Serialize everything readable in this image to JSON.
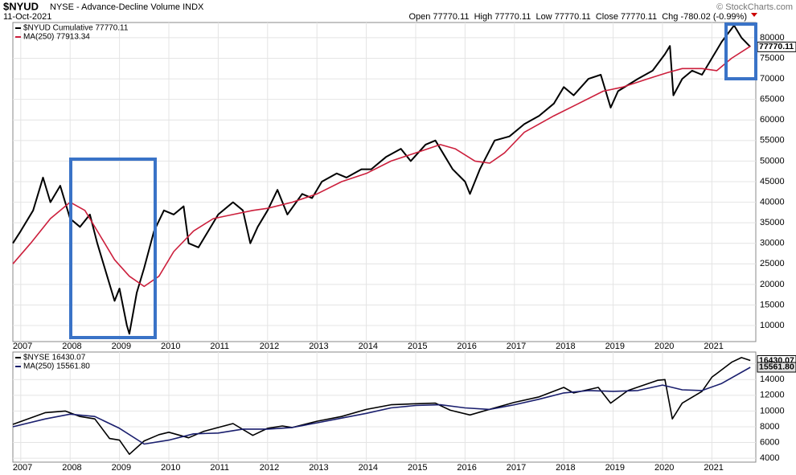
{
  "header": {
    "symbol": "$NYUD",
    "name": "NYSE - Advance-Decline Volume INDX",
    "date": "11-Oct-2021",
    "quote": "Open 77770.11  High 77770.11  Low 77770.11  Close 77770.11  Chg -780.02 (-0.99%)",
    "copyright": "© StockCharts.com"
  },
  "chart_data": [
    {
      "type": "line",
      "xlim": [
        2006.84,
        2021.89
      ],
      "ylim": [
        6100,
        83700
      ],
      "xticks": [
        2007,
        2008,
        2009,
        2010,
        2011,
        2012,
        2013,
        2014,
        2015,
        2016,
        2017,
        2018,
        2019,
        2020,
        2021
      ],
      "yticks": [
        10000,
        15000,
        20000,
        25000,
        30000,
        35000,
        40000,
        45000,
        50000,
        55000,
        60000,
        65000,
        70000,
        75000,
        80000
      ],
      "grid": true,
      "series": [
        {
          "name": "$NYUD Cumulative 77770.11",
          "color": "#000000",
          "value_tag": "77770.11",
          "x": [
            2006.84,
            2007.0,
            2007.25,
            2007.45,
            2007.6,
            2007.8,
            2008.0,
            2008.2,
            2008.4,
            2008.55,
            2008.75,
            2008.9,
            2009.0,
            2009.15,
            2009.2,
            2009.35,
            2009.5,
            2009.7,
            2009.9,
            2010.1,
            2010.3,
            2010.4,
            2010.6,
            2010.8,
            2011.0,
            2011.3,
            2011.5,
            2011.65,
            2011.8,
            2012.0,
            2012.2,
            2012.4,
            2012.7,
            2012.9,
            2013.1,
            2013.4,
            2013.6,
            2013.9,
            2014.1,
            2014.4,
            2014.7,
            2014.9,
            2015.2,
            2015.4,
            2015.6,
            2015.75,
            2016.0,
            2016.1,
            2016.3,
            2016.6,
            2016.9,
            2017.2,
            2017.5,
            2017.8,
            2018.0,
            2018.2,
            2018.5,
            2018.75,
            2018.95,
            2019.1,
            2019.5,
            2019.8,
            2020.05,
            2020.15,
            2020.22,
            2020.4,
            2020.6,
            2020.8,
            2020.95,
            2021.2,
            2021.45,
            2021.6,
            2021.78
          ],
          "values": [
            30000,
            33000,
            38000,
            46000,
            40000,
            44000,
            36000,
            34000,
            37000,
            30000,
            22000,
            16000,
            19000,
            10000,
            8000,
            18000,
            24000,
            33000,
            38000,
            37000,
            39000,
            30000,
            29000,
            33000,
            37000,
            40000,
            38000,
            30000,
            34000,
            38000,
            43000,
            37000,
            42000,
            41000,
            45000,
            47000,
            46000,
            48000,
            48000,
            51000,
            53000,
            50000,
            54000,
            55000,
            51000,
            48000,
            45000,
            42000,
            48000,
            55000,
            56000,
            59000,
            61000,
            64000,
            68000,
            66000,
            70000,
            71000,
            63000,
            67000,
            70000,
            72000,
            76000,
            78000,
            66000,
            70000,
            72000,
            71000,
            74000,
            79000,
            83000,
            80000,
            77770.11
          ]
        },
        {
          "name": "MA(250) 77913.34",
          "color": "#cc1f3c",
          "x": [
            2006.84,
            2007.2,
            2007.6,
            2008.0,
            2008.3,
            2008.6,
            2008.9,
            2009.2,
            2009.5,
            2009.8,
            2010.1,
            2010.5,
            2010.9,
            2011.3,
            2011.7,
            2012.0,
            2012.5,
            2013.0,
            2013.5,
            2014.0,
            2014.5,
            2015.0,
            2015.5,
            2015.8,
            2016.2,
            2016.5,
            2016.8,
            2017.2,
            2017.8,
            2018.3,
            2018.8,
            2019.2,
            2019.7,
            2020.1,
            2020.4,
            2020.8,
            2021.1,
            2021.4,
            2021.78
          ],
          "values": [
            25000,
            30000,
            36000,
            40000,
            38000,
            32000,
            26000,
            22000,
            19500,
            22000,
            28000,
            33000,
            36000,
            37000,
            38000,
            38500,
            40000,
            42000,
            45000,
            47000,
            50000,
            52000,
            54000,
            53000,
            50000,
            49500,
            52000,
            57000,
            61000,
            64000,
            67000,
            68000,
            70000,
            71500,
            72500,
            72500,
            72000,
            75000,
            77913.34
          ]
        }
      ]
    },
    {
      "type": "line",
      "xlim": [
        2006.84,
        2021.89
      ],
      "ylim": [
        3500,
        17500
      ],
      "xticks": [
        2007,
        2008,
        2009,
        2010,
        2011,
        2012,
        2013,
        2014,
        2015,
        2016,
        2017,
        2018,
        2019,
        2020,
        2021
      ],
      "yticks": [
        4000,
        6000,
        8000,
        10000,
        12000,
        14000,
        16000
      ],
      "grid": true,
      "series": [
        {
          "name": "$NYSE 16430.07",
          "color": "#000000",
          "value_tag": "16430.07",
          "x": [
            2006.84,
            2007.5,
            2007.9,
            2008.2,
            2008.5,
            2008.8,
            2009.0,
            2009.2,
            2009.5,
            2009.8,
            2010.0,
            2010.4,
            2010.7,
            2011.0,
            2011.3,
            2011.7,
            2012.0,
            2012.3,
            2012.5,
            2013.0,
            2013.5,
            2014.0,
            2014.5,
            2014.9,
            2015.4,
            2015.7,
            2016.1,
            2016.6,
            2017.0,
            2017.5,
            2018.0,
            2018.2,
            2018.7,
            2018.95,
            2019.3,
            2019.9,
            2020.05,
            2020.2,
            2020.4,
            2020.8,
            2021.0,
            2021.4,
            2021.6,
            2021.78
          ],
          "values": [
            8300,
            9800,
            10000,
            9300,
            9000,
            6500,
            6300,
            4500,
            6200,
            7000,
            7300,
            6600,
            7400,
            7900,
            8400,
            6900,
            7800,
            8100,
            7900,
            8700,
            9300,
            10200,
            10800,
            10900,
            11000,
            10100,
            9500,
            10400,
            11100,
            11800,
            13000,
            12300,
            13000,
            11000,
            12600,
            13900,
            14000,
            9000,
            11000,
            12500,
            14300,
            16200,
            16800,
            16430.07
          ]
        },
        {
          "name": "MA(250) 15561.80",
          "color": "#1a1f6e",
          "value_tag": "15561.80",
          "x": [
            2006.84,
            2007.5,
            2008.0,
            2008.5,
            2009.0,
            2009.5,
            2010.0,
            2010.5,
            2011.0,
            2011.5,
            2012.0,
            2012.5,
            2013.0,
            2013.5,
            2014.0,
            2014.5,
            2015.0,
            2015.5,
            2016.0,
            2016.5,
            2017.0,
            2017.5,
            2018.0,
            2018.5,
            2019.0,
            2019.5,
            2020.0,
            2020.4,
            2020.8,
            2021.2,
            2021.78
          ],
          "values": [
            8000,
            9000,
            9600,
            9300,
            7800,
            5800,
            6300,
            7100,
            7200,
            7700,
            7700,
            7900,
            8500,
            9100,
            9700,
            10400,
            10700,
            10800,
            10400,
            10200,
            10800,
            11500,
            12300,
            12600,
            12500,
            12600,
            13300,
            12700,
            12600,
            13500,
            15561.8
          ]
        }
      ]
    }
  ]
}
